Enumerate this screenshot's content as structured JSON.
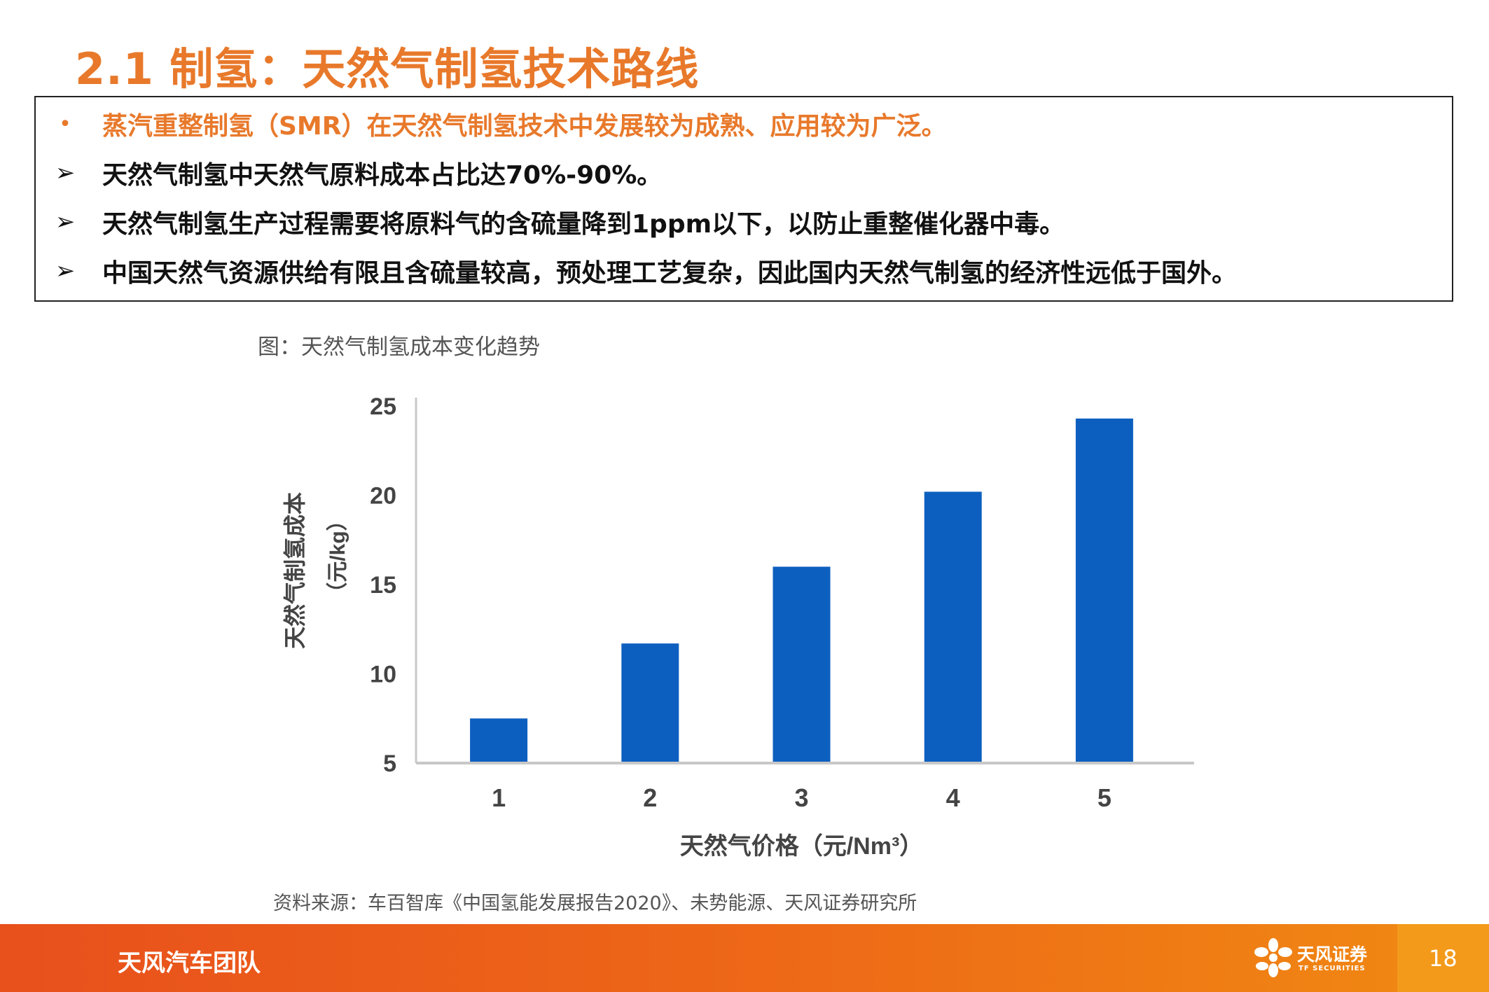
{
  "title": "2.1 制氢：天然气制氢技术路线",
  "bullets": [
    {
      "marker": "•",
      "text": "蒸汽重整制氢（SMR）在天然气制氢技术中发展较为成熟、应用较为广泛。"
    },
    {
      "marker": "➢",
      "text": "天然气制氢中天然气原料成本占比达70%-90%。"
    },
    {
      "marker": "➢",
      "text": "天然气制氢生产过程需要将原料气的含硫量降到1ppm以下，以防止重整催化器中毒。"
    },
    {
      "marker": "➢",
      "text": "中国天然气资源供给有限且含硫量较高，预处理工艺复杂，因此国内天然气制氢的经济性远低于国外。"
    }
  ],
  "figure_caption": "图：天然气制氢成本变化趋势",
  "chart_data": {
    "type": "bar",
    "categories": [
      "1",
      "2",
      "3",
      "4",
      "5"
    ],
    "values": [
      7.5,
      11.7,
      16.0,
      20.2,
      24.3
    ],
    "xlabel": "天然气价格（元/Nm³）",
    "ylabel": "天然气制氢成本（元/kg）",
    "ylabel_line1": "天然气制氢成本",
    "ylabel_line2": "（元/kg）",
    "ylim": [
      5,
      25
    ],
    "yticks": [
      5,
      10,
      15,
      20,
      25
    ],
    "grid": false,
    "legend": "none",
    "bar_color": "#0D5FBF"
  },
  "source": "资料来源：车百智库《中国氢能发展报告2020》、未势能源、天风证券研究所",
  "footer": {
    "team": "天风汽车团队",
    "logo_cn": "天风证券",
    "logo_en": "TF SECURITIES",
    "page": "18"
  },
  "colors": {
    "accent": "#E8792B",
    "footer_start": "#E8501C",
    "footer_end": "#F08A12"
  }
}
